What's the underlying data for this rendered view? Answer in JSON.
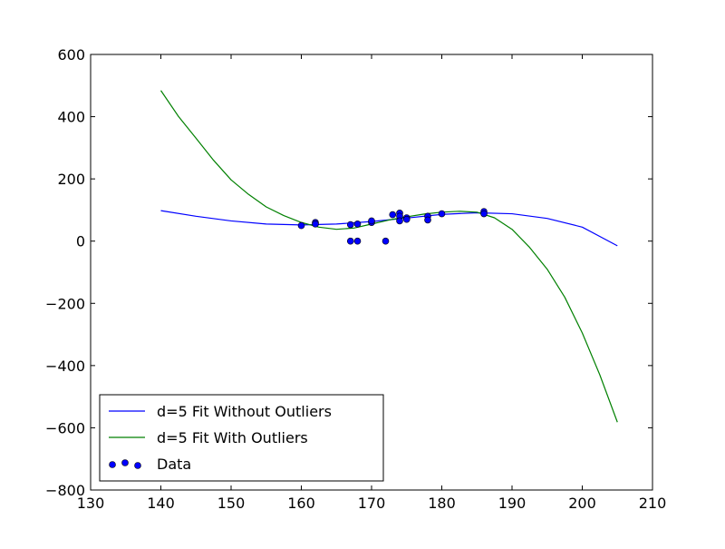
{
  "chart_data": {
    "type": "line",
    "title": "",
    "xlabel": "",
    "ylabel": "",
    "xlim": [
      130,
      210
    ],
    "ylim": [
      -800,
      600
    ],
    "xticks": [
      130,
      140,
      150,
      160,
      170,
      180,
      190,
      200,
      210
    ],
    "yticks": [
      -800,
      -600,
      -400,
      -200,
      0,
      200,
      400,
      600
    ],
    "xtick_labels": [
      "130",
      "140",
      "150",
      "160",
      "170",
      "180",
      "190",
      "200",
      "210"
    ],
    "ytick_labels": [
      "−800",
      "−600",
      "−400",
      "−200",
      "0",
      "200",
      "400",
      "600"
    ],
    "grid": false,
    "legend_position": "bottom-left",
    "series": [
      {
        "name": "d=5 Fit Without Outliers",
        "kind": "line",
        "color": "#0000ff",
        "x": [
          140,
          145,
          150,
          155,
          160,
          165,
          170,
          175,
          180,
          185,
          190,
          195,
          200,
          205
        ],
        "y": [
          98,
          80,
          65,
          55,
          52,
          55,
          63,
          74,
          86,
          91,
          88,
          73,
          45,
          -15
        ]
      },
      {
        "name": "d=5 Fit With Outliers",
        "kind": "line",
        "color": "#008000",
        "x": [
          140,
          142.5,
          145,
          147.5,
          150,
          152.5,
          155,
          157.5,
          160,
          162.5,
          165,
          167.5,
          170,
          172.5,
          175,
          177.5,
          180,
          182.5,
          185,
          187.5,
          190,
          192.5,
          195,
          197.5,
          200,
          202.5,
          205
        ],
        "y": [
          484,
          401,
          331,
          260,
          197,
          150,
          110,
          82,
          60,
          45,
          38,
          42,
          55,
          68,
          78,
          87,
          93,
          96,
          93,
          75,
          38,
          -20,
          -90,
          -180,
          -295,
          -430,
          -582
        ]
      },
      {
        "name": "Data",
        "kind": "scatter",
        "color": "#0000ff",
        "x": [
          160,
          162,
          162,
          167,
          167,
          168,
          168,
          170,
          170,
          172,
          173,
          174,
          174,
          174,
          175,
          175,
          178,
          178,
          180,
          186,
          186
        ],
        "y": [
          50,
          60,
          55,
          53,
          0,
          55,
          0,
          60,
          65,
          0,
          85,
          90,
          80,
          65,
          75,
          70,
          80,
          68,
          88,
          95,
          88
        ]
      }
    ]
  }
}
